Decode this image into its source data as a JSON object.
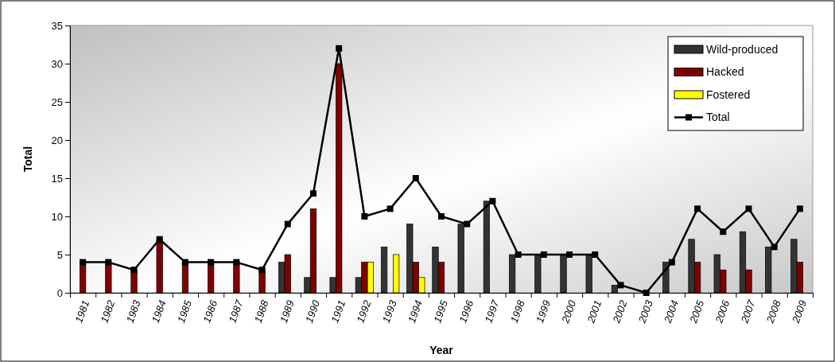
{
  "chart_data": {
    "type": "bar",
    "xlabel": "Year",
    "ylabel": "Total",
    "categories": [
      "1981",
      "1982",
      "1983",
      "1984",
      "1985",
      "1986",
      "1987",
      "1988",
      "1989",
      "1990",
      "1991",
      "1992",
      "1993",
      "1994",
      "1995",
      "1996",
      "1997",
      "1998",
      "1999",
      "2000",
      "2001",
      "2002",
      "2003",
      "2004",
      "2005",
      "2006",
      "2007",
      "2008",
      "2009"
    ],
    "series": [
      {
        "name": "Wild-produced",
        "color": "#333333",
        "values": [
          null,
          null,
          null,
          null,
          null,
          null,
          null,
          null,
          4,
          2,
          2,
          2,
          6,
          9,
          6,
          9,
          12,
          5,
          5,
          5,
          5,
          1,
          0,
          4,
          7,
          5,
          8,
          6,
          7
        ]
      },
      {
        "name": "Hacked",
        "color": "#800000",
        "values": [
          4,
          4,
          3,
          7,
          4,
          4,
          4,
          3,
          5,
          11,
          30,
          4,
          null,
          4,
          4,
          null,
          null,
          null,
          null,
          null,
          null,
          null,
          null,
          null,
          4,
          3,
          3,
          null,
          4
        ]
      },
      {
        "name": "Fostered",
        "color": "#ffff00",
        "values": [
          null,
          null,
          null,
          null,
          null,
          null,
          null,
          null,
          null,
          null,
          null,
          4,
          5,
          2,
          null,
          null,
          null,
          null,
          null,
          null,
          null,
          null,
          null,
          null,
          null,
          null,
          null,
          null,
          null
        ]
      },
      {
        "name": "Total",
        "type": "line",
        "color": "#000000",
        "values": [
          4,
          4,
          3,
          7,
          4,
          4,
          4,
          3,
          9,
          13,
          32,
          10,
          11,
          15,
          10,
          9,
          12,
          5,
          5,
          5,
          5,
          1,
          0,
          4,
          11,
          8,
          11,
          6,
          11
        ]
      }
    ],
    "ylim": [
      0,
      35
    ],
    "yticks": [
      0,
      5,
      10,
      15,
      20,
      25,
      30,
      35
    ],
    "grid": false,
    "legend": "top right",
    "marker": "square",
    "line_style": "solid"
  }
}
